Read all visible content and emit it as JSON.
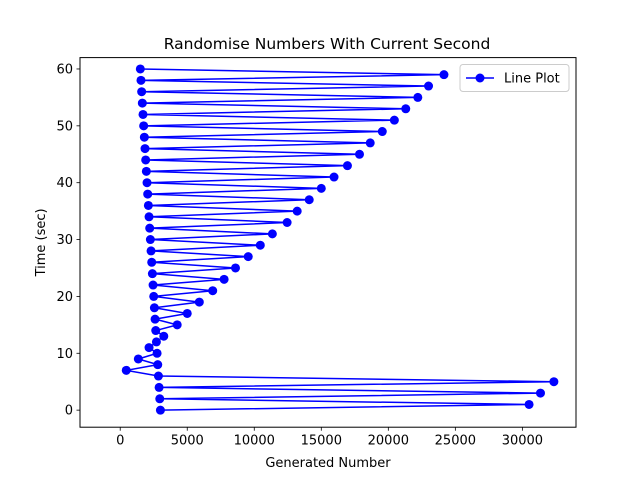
{
  "chart_data": {
    "type": "line",
    "title": "Randomise Numbers With Current Second",
    "xlabel": "Generated Number",
    "ylabel": "Time (sec)",
    "xlim": [
      -3000,
      34000
    ],
    "ylim": [
      -3,
      62
    ],
    "xticks": [
      0,
      5000,
      10000,
      15000,
      20000,
      25000,
      30000
    ],
    "yticks": [
      0,
      10,
      20,
      30,
      40,
      50,
      60
    ],
    "grid": false,
    "legend_position": "top-right",
    "series": [
      {
        "name": "Line Plot",
        "color": "#0000ff",
        "marker": "circle",
        "points": [
          [
            3000,
            0
          ],
          [
            30500,
            1
          ],
          [
            2950,
            2
          ],
          [
            31350,
            3
          ],
          [
            2900,
            4
          ],
          [
            32350,
            5
          ],
          [
            2850,
            6
          ],
          [
            450,
            7
          ],
          [
            2800,
            8
          ],
          [
            1350,
            9
          ],
          [
            2750,
            10
          ],
          [
            2150,
            11
          ],
          [
            2700,
            12
          ],
          [
            3250,
            13
          ],
          [
            2650,
            14
          ],
          [
            4250,
            15
          ],
          [
            2600,
            16
          ],
          [
            5000,
            17
          ],
          [
            2550,
            18
          ],
          [
            5900,
            19
          ],
          [
            2500,
            20
          ],
          [
            6900,
            21
          ],
          [
            2450,
            22
          ],
          [
            7750,
            23
          ],
          [
            2400,
            24
          ],
          [
            8600,
            25
          ],
          [
            2350,
            26
          ],
          [
            9550,
            27
          ],
          [
            2300,
            28
          ],
          [
            10450,
            29
          ],
          [
            2250,
            30
          ],
          [
            11350,
            31
          ],
          [
            2200,
            32
          ],
          [
            12450,
            33
          ],
          [
            2150,
            34
          ],
          [
            13200,
            35
          ],
          [
            2100,
            36
          ],
          [
            14100,
            37
          ],
          [
            2050,
            38
          ],
          [
            15000,
            39
          ],
          [
            2000,
            40
          ],
          [
            15950,
            41
          ],
          [
            1950,
            42
          ],
          [
            16950,
            43
          ],
          [
            1900,
            44
          ],
          [
            17850,
            45
          ],
          [
            1850,
            46
          ],
          [
            18650,
            47
          ],
          [
            1800,
            48
          ],
          [
            19550,
            49
          ],
          [
            1750,
            50
          ],
          [
            20450,
            51
          ],
          [
            1700,
            52
          ],
          [
            21300,
            53
          ],
          [
            1650,
            54
          ],
          [
            22200,
            55
          ],
          [
            1600,
            56
          ],
          [
            23000,
            57
          ],
          [
            1550,
            58
          ],
          [
            24150,
            59
          ],
          [
            1500,
            60
          ]
        ]
      }
    ]
  }
}
